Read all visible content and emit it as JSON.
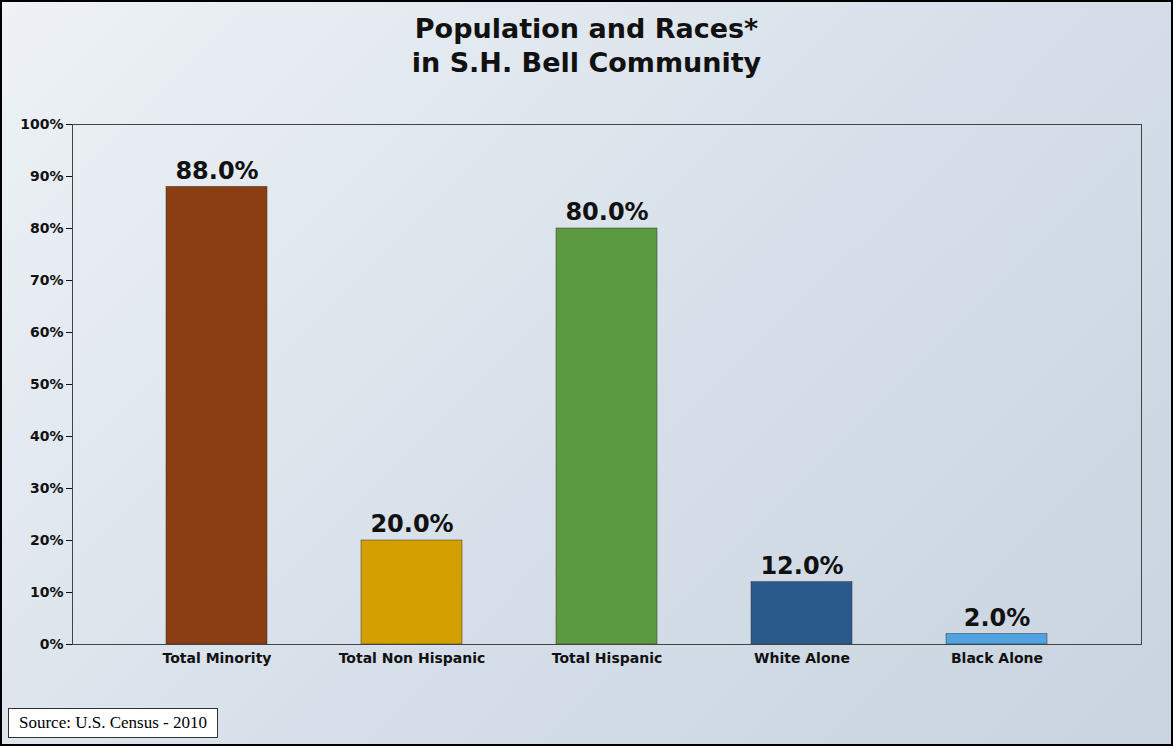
{
  "chart_data": {
    "type": "bar",
    "title": "Population and Races*\nin S.H. Bell Community",
    "categories": [
      "Total Minority",
      "Total Non Hispanic",
      "Total Hispanic",
      "White Alone",
      "Black Alone"
    ],
    "values": [
      88.0,
      20.0,
      80.0,
      12.0,
      2.0
    ],
    "value_labels": [
      "88.0%",
      "20.0%",
      "80.0%",
      "12.0%",
      "2.0%"
    ],
    "colors": [
      "#8b3e12",
      "#d4a000",
      "#5b9a3e",
      "#2a5a8c",
      "#4fa3e0"
    ],
    "data_labels": true,
    "grid": false,
    "ylim": [
      0,
      100
    ],
    "yticks": [
      {
        "value": 0,
        "label": "0%"
      },
      {
        "value": 10,
        "label": "10%"
      },
      {
        "value": 20,
        "label": "20%"
      },
      {
        "value": 30,
        "label": "30%"
      },
      {
        "value": 40,
        "label": "40%"
      },
      {
        "value": 50,
        "label": "50%"
      },
      {
        "value": 60,
        "label": "60%"
      },
      {
        "value": 70,
        "label": "70%"
      },
      {
        "value": 80,
        "label": "80%"
      },
      {
        "value": 90,
        "label": "90%"
      },
      {
        "value": 100,
        "label": "100%"
      }
    ],
    "caption": "Source: U.S. Census - 2010"
  }
}
